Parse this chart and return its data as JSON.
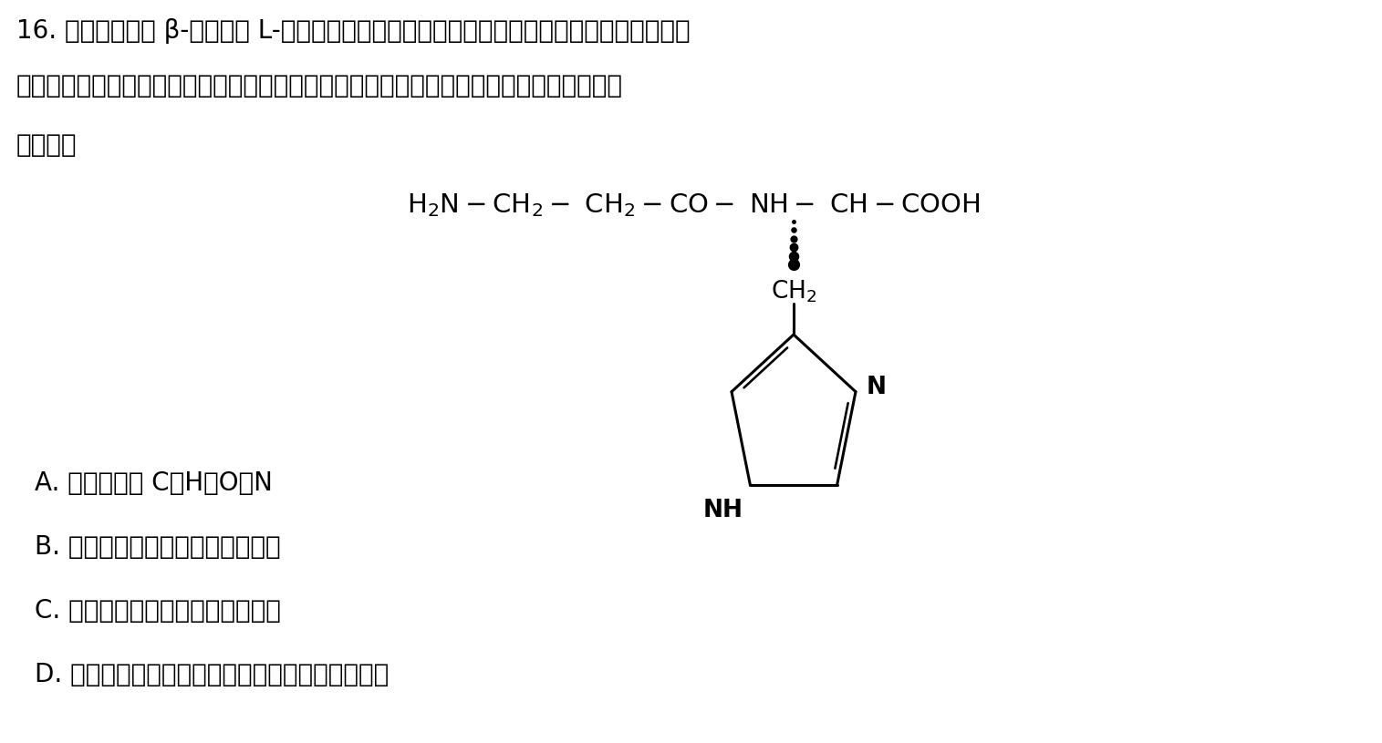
{
  "background_color": "#ffffff",
  "line1_text": "16. 肌踽是一种由 β-丙氨酸和 L-组氨酸组成的化合物，无毒且具有强抗氧化性，其结构式如下",
  "line2_text": "图所示，双缩脲试剂可以检测具有两个或两个以上肽键的物质。下列有关该化合物的叙述，",
  "line3_text": "错误的是",
  "option_A": "A. 组成元素为 C、H、O、N",
  "option_B": "B. 含有肽键，可被双缩脲试剂检测",
  "option_C": "C. 由两个氨基酸形成，是一种二肽",
  "option_D": "D. 组成肌踽的两种氨基酸不能都参与蛋白质的合成",
  "text_color": "#000000",
  "title_fontsize": 20,
  "option_fontsize": 20,
  "formula_fontsize": 18
}
